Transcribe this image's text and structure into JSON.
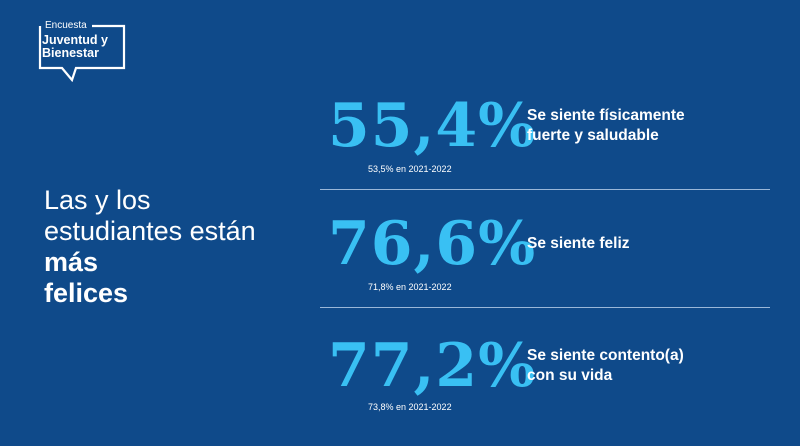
{
  "logo": {
    "tag": "Encuesta",
    "line1": "Juventud y",
    "line2": "Bienestar"
  },
  "headline": {
    "pre": "Las y los estudiantes están",
    "bold1": "más",
    "bold2": "felices"
  },
  "stats": [
    {
      "value": "55,4%",
      "desc1": "Se siente físicamente",
      "desc2": "fuerte y saludable",
      "prev": "53,5% en 2021-2022"
    },
    {
      "value": "76,6%",
      "desc1": "Se siente feliz",
      "desc2": "",
      "prev": "71,8% en 2021-2022"
    },
    {
      "value": "77,2%",
      "desc1": "Se siente contento(a)",
      "desc2": "con su vida",
      "prev": "73,8% en 2021-2022"
    }
  ]
}
